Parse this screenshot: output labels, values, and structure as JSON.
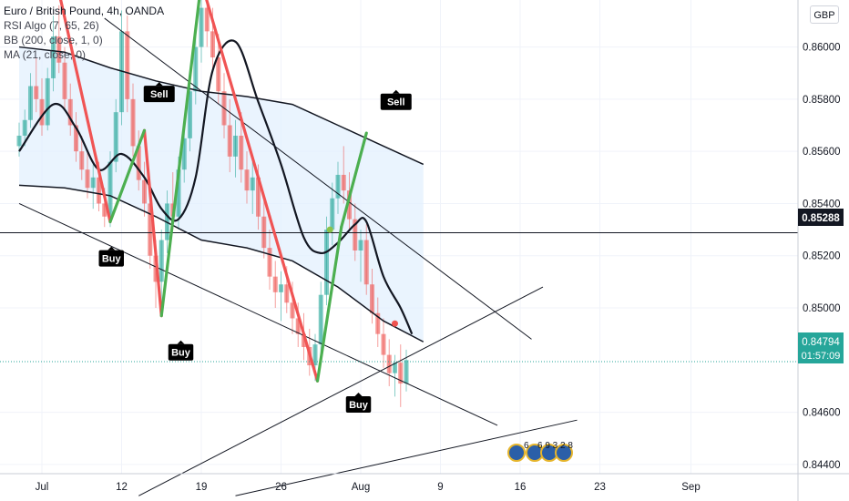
{
  "header": {
    "title": "Euro / British Pound, 4h, OANDA",
    "indicators": [
      "RSI Algo (7, 65, 26)",
      "BB (200, close, 1, 0)",
      "MA (21, close, 0)"
    ]
  },
  "currency_button": "GBP",
  "chart_data": {
    "type": "line",
    "symbol": "EURGBP",
    "timeframe": "4h",
    "x_tick_labels": [
      "Jul",
      "12",
      "19",
      "26",
      "Aug",
      "9",
      "16",
      "23",
      "Sep"
    ],
    "y_tick_labels": [
      "0.86000",
      "0.85800",
      "0.85600",
      "0.85400",
      "0.85200",
      "0.85000",
      "0.84600",
      "0.84400"
    ],
    "ylim": [
      0.8426,
      0.8618
    ],
    "horizontal_line": {
      "value": 0.85288,
      "label": "0.85288"
    },
    "last_price": {
      "value": 0.84794,
      "label": "0.84794",
      "countdown": "01:57:09"
    },
    "signals": [
      {
        "label": "Sell",
        "day": 10.3,
        "price": 0.8582
      },
      {
        "label": "Buy",
        "day": 6.1,
        "price": 0.8519
      },
      {
        "label": "Buy",
        "day": 12.2,
        "price": 0.8483
      },
      {
        "label": "Sell",
        "day": 31.1,
        "price": 0.8579
      },
      {
        "label": "Buy",
        "day": 27.8,
        "price": 0.8463
      }
    ],
    "zigzag": {
      "red_segments": [
        [
          [
            1.5,
            0.8621
          ],
          [
            6.0,
            0.8533
          ]
        ],
        [
          [
            9.0,
            0.8568
          ],
          [
            10.5,
            0.8497
          ]
        ],
        [
          [
            14.0,
            0.8625
          ],
          [
            20.0,
            0.8535
          ]
        ],
        [
          [
            20.0,
            0.8535
          ],
          [
            24.2,
            0.8472
          ]
        ]
      ],
      "green_segments": [
        [
          [
            6.0,
            0.8533
          ],
          [
            9.0,
            0.8568
          ]
        ],
        [
          [
            10.5,
            0.8497
          ],
          [
            14.0,
            0.8625
          ]
        ],
        [
          [
            24.2,
            0.8472
          ],
          [
            26.3,
            0.8531
          ]
        ],
        [
          [
            26.3,
            0.8531
          ],
          [
            28.5,
            0.8567
          ]
        ]
      ]
    },
    "markers": [
      {
        "color": "green",
        "day": 25.3,
        "price": 0.853
      },
      {
        "color": "red",
        "day": 31.0,
        "price": 0.8494
      }
    ],
    "bb_upper": [
      [
        -2,
        0.86
      ],
      [
        2,
        0.8598
      ],
      [
        6,
        0.8592
      ],
      [
        10,
        0.8587
      ],
      [
        14,
        0.8583
      ],
      [
        18,
        0.8581
      ],
      [
        22,
        0.8578
      ],
      [
        26,
        0.857
      ],
      [
        30,
        0.8562
      ],
      [
        33.5,
        0.8555
      ]
    ],
    "bb_lower": [
      [
        -2,
        0.8547
      ],
      [
        2,
        0.8546
      ],
      [
        6,
        0.8543
      ],
      [
        10,
        0.8535
      ],
      [
        14,
        0.8526
      ],
      [
        18,
        0.8523
      ],
      [
        22,
        0.8518
      ],
      [
        26,
        0.8508
      ],
      [
        30,
        0.8495
      ],
      [
        33.5,
        0.8487
      ]
    ],
    "ma": [
      [
        -2,
        0.856
      ],
      [
        1,
        0.8578
      ],
      [
        3,
        0.8569
      ],
      [
        5,
        0.8553
      ],
      [
        7,
        0.8559
      ],
      [
        9,
        0.855
      ],
      [
        10.5,
        0.8538
      ],
      [
        12,
        0.8534
      ],
      [
        13.5,
        0.855
      ],
      [
        15,
        0.8591
      ],
      [
        17,
        0.8602
      ],
      [
        19,
        0.8579
      ],
      [
        21,
        0.8555
      ],
      [
        23,
        0.8527
      ],
      [
        24.5,
        0.8521
      ],
      [
        26,
        0.8525
      ],
      [
        27.5,
        0.8532
      ],
      [
        28.5,
        0.8533
      ],
      [
        30,
        0.8512
      ],
      [
        31.5,
        0.85
      ],
      [
        32.5,
        0.849
      ]
    ],
    "trendlines": [
      [
        [
          5.5,
          0.8611
        ],
        [
          43,
          0.8488
        ]
      ],
      [
        [
          -2,
          0.854
        ],
        [
          40,
          0.8455
        ]
      ],
      [
        [
          8.5,
          0.8428
        ],
        [
          44,
          0.8508
        ]
      ],
      [
        [
          17.0,
          0.8428
        ],
        [
          47,
          0.8457
        ]
      ]
    ],
    "candles": [
      [
        -2,
        0.8562,
        0.8571,
        0.8558,
        0.8566
      ],
      [
        -1.5,
        0.8566,
        0.8576,
        0.8562,
        0.8572
      ],
      [
        -1,
        0.8572,
        0.859,
        0.8569,
        0.8585
      ],
      [
        -0.5,
        0.8585,
        0.8596,
        0.8575,
        0.858
      ],
      [
        0,
        0.858,
        0.8588,
        0.8566,
        0.857
      ],
      [
        0.5,
        0.857,
        0.8592,
        0.8568,
        0.8588
      ],
      [
        1,
        0.8588,
        0.8612,
        0.8583,
        0.8604
      ],
      [
        1.5,
        0.8604,
        0.8616,
        0.859,
        0.8594
      ],
      [
        2,
        0.8594,
        0.86,
        0.8576,
        0.858
      ],
      [
        2.5,
        0.858,
        0.8586,
        0.8566,
        0.857
      ],
      [
        3,
        0.857,
        0.8575,
        0.8556,
        0.856
      ],
      [
        3.5,
        0.856,
        0.8566,
        0.8549,
        0.8553
      ],
      [
        4,
        0.8553,
        0.856,
        0.8542,
        0.8546
      ],
      [
        4.5,
        0.8546,
        0.8555,
        0.8538,
        0.855
      ],
      [
        5,
        0.855,
        0.8556,
        0.8537,
        0.854
      ],
      [
        5.5,
        0.854,
        0.8546,
        0.8531,
        0.8535
      ],
      [
        6,
        0.8535,
        0.856,
        0.8531,
        0.8556
      ],
      [
        6.5,
        0.8556,
        0.858,
        0.8552,
        0.8575
      ],
      [
        7,
        0.8575,
        0.8614,
        0.857,
        0.8606
      ],
      [
        7.5,
        0.8606,
        0.8612,
        0.8575,
        0.858
      ],
      [
        8,
        0.858,
        0.8586,
        0.8558,
        0.8562
      ],
      [
        8.5,
        0.8562,
        0.8568,
        0.8545,
        0.8549
      ],
      [
        9,
        0.8549,
        0.8556,
        0.8535,
        0.854
      ],
      [
        9.5,
        0.854,
        0.8545,
        0.8515,
        0.852
      ],
      [
        10,
        0.852,
        0.8526,
        0.85,
        0.851
      ],
      [
        10.5,
        0.851,
        0.853,
        0.8497,
        0.8526
      ],
      [
        11,
        0.8526,
        0.8545,
        0.8521,
        0.854
      ],
      [
        11.5,
        0.854,
        0.8552,
        0.853,
        0.8535
      ],
      [
        12,
        0.8535,
        0.8558,
        0.853,
        0.8553
      ],
      [
        12.5,
        0.8553,
        0.857,
        0.8548,
        0.8565
      ],
      [
        13,
        0.8565,
        0.8588,
        0.856,
        0.8583
      ],
      [
        13.5,
        0.8583,
        0.8605,
        0.8578,
        0.86
      ],
      [
        14,
        0.86,
        0.862,
        0.8594,
        0.8615
      ],
      [
        14.5,
        0.8615,
        0.8625,
        0.86,
        0.8606
      ],
      [
        15,
        0.8606,
        0.8615,
        0.859,
        0.8596
      ],
      [
        15.5,
        0.8596,
        0.8605,
        0.8578,
        0.8583
      ],
      [
        16,
        0.8583,
        0.859,
        0.8565,
        0.857
      ],
      [
        16.5,
        0.857,
        0.858,
        0.8552,
        0.8558
      ],
      [
        17,
        0.8558,
        0.8572,
        0.855,
        0.8566
      ],
      [
        17.5,
        0.8566,
        0.8575,
        0.8548,
        0.8553
      ],
      [
        18,
        0.8553,
        0.856,
        0.854,
        0.8545
      ],
      [
        18.5,
        0.8545,
        0.8556,
        0.8536,
        0.855
      ],
      [
        19,
        0.855,
        0.8555,
        0.853,
        0.8535
      ],
      [
        19.5,
        0.8535,
        0.8541,
        0.8519,
        0.8523
      ],
      [
        20,
        0.8523,
        0.853,
        0.8507,
        0.8512
      ],
      [
        20.5,
        0.8512,
        0.8518,
        0.85,
        0.8506
      ],
      [
        21,
        0.8506,
        0.8514,
        0.8495,
        0.8509
      ],
      [
        21.5,
        0.8509,
        0.8516,
        0.8498,
        0.8502
      ],
      [
        22,
        0.8502,
        0.851,
        0.849,
        0.8496
      ],
      [
        22.5,
        0.8496,
        0.8502,
        0.8485,
        0.849
      ],
      [
        23,
        0.849,
        0.8498,
        0.848,
        0.8485
      ],
      [
        23.5,
        0.8485,
        0.8492,
        0.8474,
        0.8478
      ],
      [
        24,
        0.8478,
        0.849,
        0.8472,
        0.8486
      ],
      [
        24.5,
        0.8486,
        0.851,
        0.8482,
        0.8505
      ],
      [
        25,
        0.8505,
        0.8535,
        0.8501,
        0.853
      ],
      [
        25.5,
        0.853,
        0.8548,
        0.8524,
        0.8542
      ],
      [
        26,
        0.8542,
        0.8556,
        0.8536,
        0.8551
      ],
      [
        26.5,
        0.8551,
        0.8562,
        0.854,
        0.8545
      ],
      [
        27,
        0.8545,
        0.8552,
        0.853,
        0.8534
      ],
      [
        27.5,
        0.8534,
        0.854,
        0.8518,
        0.8522
      ],
      [
        28,
        0.8522,
        0.853,
        0.851,
        0.8526
      ],
      [
        28.5,
        0.8526,
        0.8532,
        0.8505,
        0.8509
      ],
      [
        29,
        0.8509,
        0.8515,
        0.8494,
        0.8498
      ],
      [
        29.5,
        0.8498,
        0.8504,
        0.8485,
        0.849
      ],
      [
        30,
        0.849,
        0.8496,
        0.8477,
        0.8482
      ],
      [
        30.5,
        0.8482,
        0.8488,
        0.847,
        0.8475
      ],
      [
        31,
        0.8475,
        0.8482,
        0.8466,
        0.8479
      ],
      [
        31.5,
        0.8479,
        0.8486,
        0.8462,
        0.8471
      ],
      [
        32,
        0.8471,
        0.8484,
        0.8468,
        0.848
      ]
    ]
  }
}
